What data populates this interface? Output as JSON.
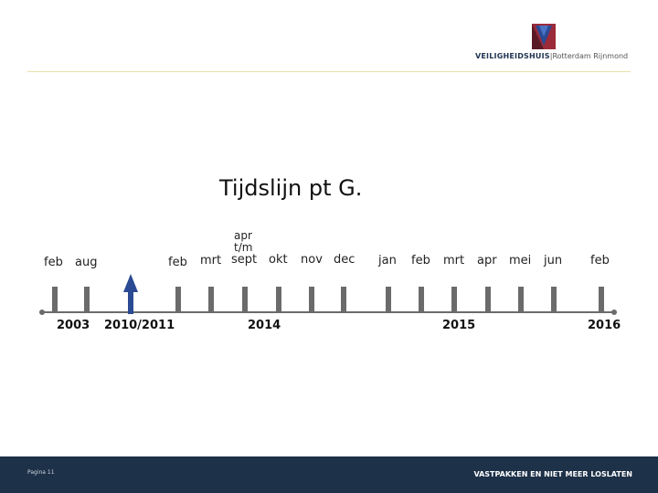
{
  "header": {
    "logo_brand": "VEILIGHEIDSHUIS",
    "logo_region": "|Rotterdam Rijnmond"
  },
  "title": "Tijdslijn pt G.",
  "timeline": {
    "stacked_label": [
      "apr",
      "t/m"
    ],
    "month_labels": [
      "feb",
      "aug",
      "feb",
      "mrt",
      "sept",
      "okt",
      "nov",
      "dec",
      "jan",
      "feb",
      "mrt",
      "apr",
      "mei",
      "jun",
      "feb"
    ],
    "years": [
      "2003",
      "2010/2011",
      "2014",
      "2015",
      "2016"
    ],
    "colors": {
      "line": "#6b6b6b",
      "tick": "#6b6b6b",
      "arrow": "#2a4a93"
    }
  },
  "footer": {
    "page_number": "Pagina 11",
    "slogan": "VASTPAKKEN EN NIET MEER LOSLATEN"
  }
}
